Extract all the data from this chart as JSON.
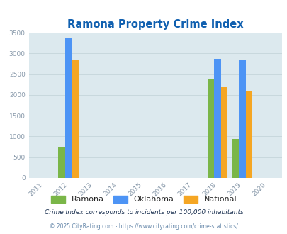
{
  "title": "Ramona Property Crime Index",
  "title_color": "#1060b0",
  "bg_color": "#dce9ee",
  "fig_bg": "#ffffff",
  "years": [
    2011,
    2012,
    2013,
    2014,
    2015,
    2016,
    2017,
    2018,
    2019,
    2020
  ],
  "data": {
    "2012": {
      "ramona": 740,
      "oklahoma": 3380,
      "national": 2850
    },
    "2018": {
      "ramona": 2380,
      "oklahoma": 2870,
      "national": 2200
    },
    "2019": {
      "ramona": 940,
      "oklahoma": 2830,
      "national": 2100
    }
  },
  "bar_width": 0.27,
  "ramona_color": "#7ab648",
  "oklahoma_color": "#4d94f5",
  "national_color": "#f5a623",
  "ylim": [
    0,
    3500
  ],
  "yticks": [
    0,
    500,
    1000,
    1500,
    2000,
    2500,
    3000,
    3500
  ],
  "legend_labels": [
    "Ramona",
    "Oklahoma",
    "National"
  ],
  "footnote1": "Crime Index corresponds to incidents per 100,000 inhabitants",
  "footnote2": "© 2025 CityRating.com - https://www.cityrating.com/crime-statistics/",
  "grid_color": "#c8d8dd",
  "tick_color": "#8899aa",
  "footnote1_color": "#1a3050",
  "footnote2_color": "#6688aa"
}
